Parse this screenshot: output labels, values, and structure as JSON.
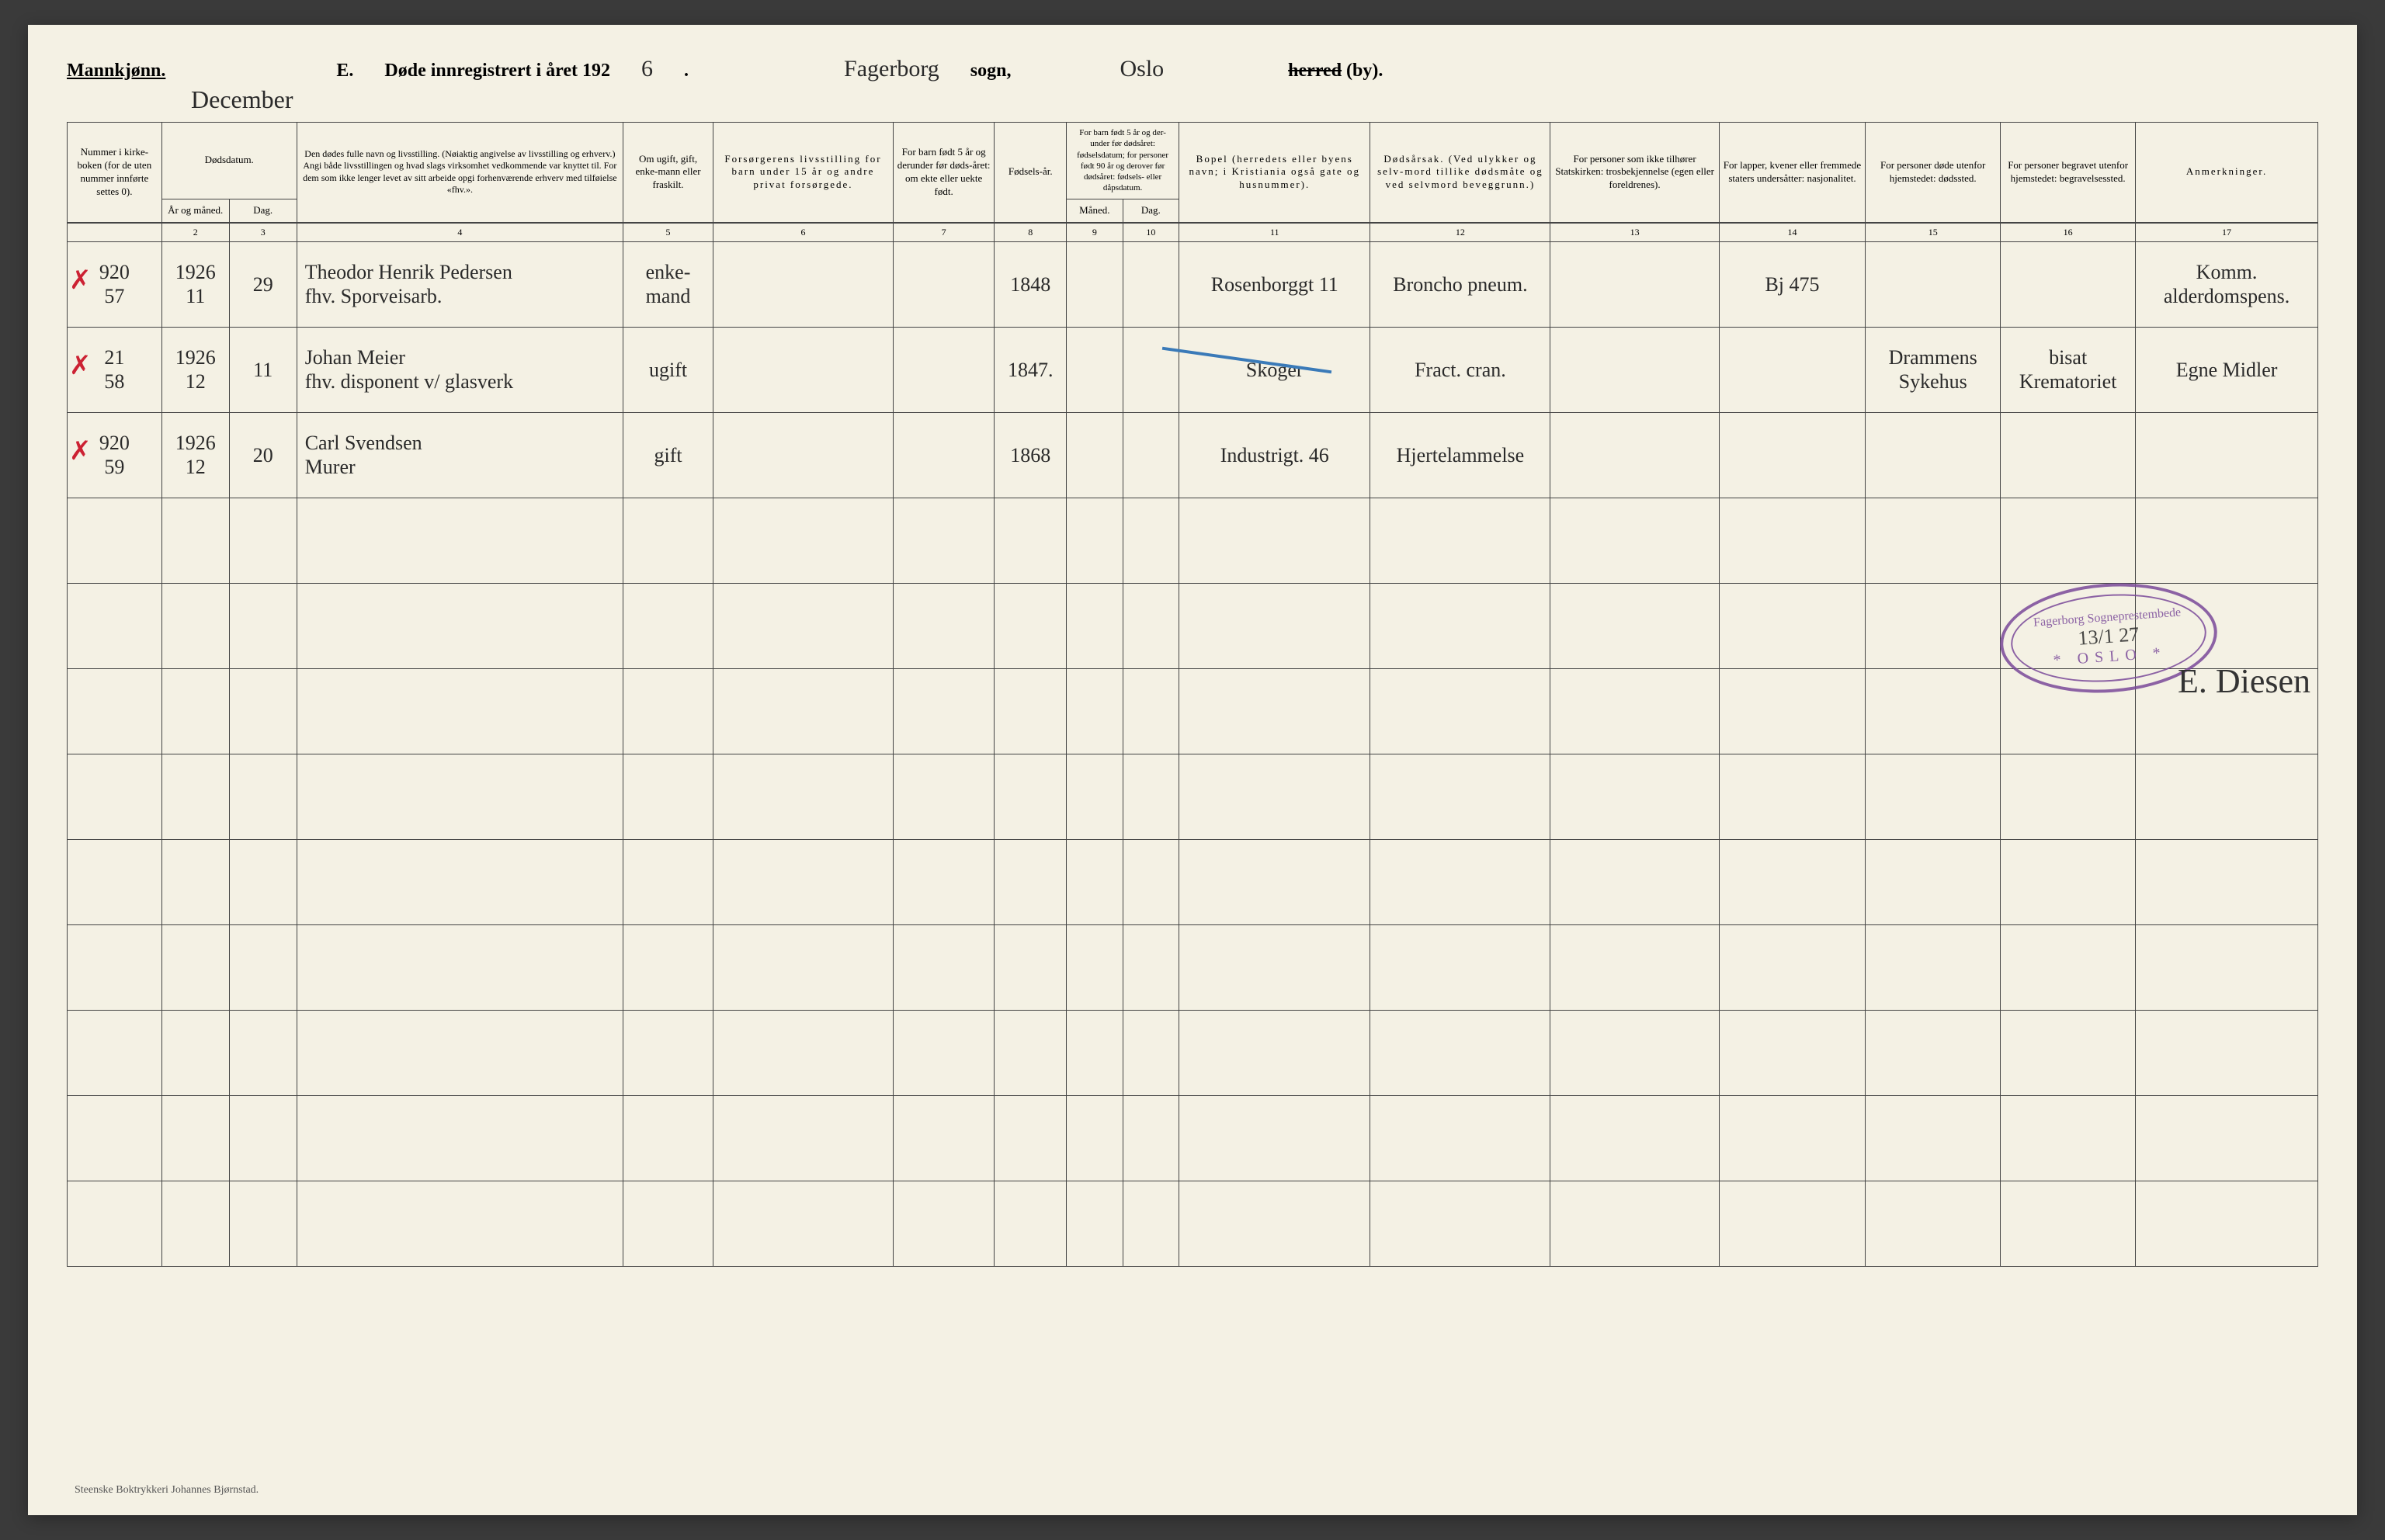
{
  "document": {
    "background_color": "#f4f1e4",
    "border_color": "#444444",
    "text_color": "#2a2a2a",
    "stamp_color": "#7a4a9a",
    "red_mark_color": "#cc2233",
    "blue_mark_color": "#3a7ab8"
  },
  "header": {
    "gender_label": "Mannkjønn.",
    "title_prefix": "E.",
    "title": "Døde innregistrert i året 192",
    "year_suffix": "6",
    "month_handwritten": "December",
    "parish_handwritten": "Fagerborg",
    "parish_label": "sogn,",
    "city_handwritten": "Oslo",
    "district_label_strike": "herred",
    "district_label_suffix": " (by)."
  },
  "columns": {
    "widths_pct": [
      4.2,
      3.0,
      3.0,
      14.5,
      4.0,
      8.0,
      4.5,
      3.2,
      2.5,
      2.5,
      8.5,
      8.0,
      7.5,
      6.5,
      6.0,
      6.0,
      8.1
    ],
    "headers": {
      "c1": "Nummer i kirke-boken (for de uten nummer innførte settes 0).",
      "c2_top": "Dødsdatum.",
      "c2a": "År og måned.",
      "c2b": "Dag.",
      "c3": "Den dødes fulle navn og livsstilling. (Nøiaktig angivelse av livsstilling og erhverv.) Angi både livsstillingen og hvad slags virksomhet vedkommende var knyttet til. For dem som ikke lenger levet av sitt arbeide opgi forhenværende erhverv med tilføielse «fhv.».",
      "c4": "Om ugift, gift, enke-mann eller fraskilt.",
      "c5": "Forsørgerens livsstilling for barn under 15 år og andre privat forsørgede.",
      "c6": "For barn født 5 år og derunder før døds-året: om ekte eller uekte født.",
      "c7": "Fødsels-år.",
      "c8_top": "For barn født 5 år og der-under før dødsåret: fødselsdatum; for personer født 90 år og derover før dødsåret: fødsels- eller dåpsdatum.",
      "c8a": "Måned.",
      "c8b": "Dag.",
      "c9": "Bopel (herredets eller byens navn; i Kristiania også gate og husnummer).",
      "c10": "Dødsårsak. (Ved ulykker og selv-mord tillike dødsmåte og ved selvmord beveggrunn.)",
      "c11": "For personer som ikke tilhører Statskirken: trosbekjennelse (egen eller foreldrenes).",
      "c12": "For lapper, kvener eller fremmede staters undersåtter: nasjonalitet.",
      "c13": "For personer døde utenfor hjemstedet: dødssted.",
      "c14": "For personer begravet utenfor hjemstedet: begravelsessted.",
      "c15": "Anmerkninger."
    },
    "numbers": [
      "",
      "2",
      "3",
      "4",
      "5",
      "6",
      "7",
      "8",
      "9",
      "10",
      "11",
      "12",
      "13",
      "14",
      "15",
      "16",
      "17"
    ]
  },
  "rows": [
    {
      "margin": "920\n57",
      "year_month": "1926\n11",
      "day": "29",
      "name": "Theodor Henrik Pedersen\nfhv. Sporveisarb.",
      "status": "enke-mand",
      "provider": "",
      "legitimacy": "",
      "birth_year": "1848",
      "birth_m": "",
      "birth_d": "",
      "residence": "Rosenborggt 11",
      "cause": "Broncho pneum.",
      "creed": "",
      "nationality": "Bj 475",
      "death_place": "",
      "burial_place": "",
      "remarks": "Komm. alderdomspens."
    },
    {
      "margin": "21\n58",
      "year_month": "1926\n12",
      "day": "11",
      "name": "Johan Meier\nfhv. disponent v/ glasverk",
      "status": "ugift",
      "provider": "",
      "legitimacy": "",
      "birth_year": "1847.",
      "birth_m": "",
      "birth_d": "",
      "residence": "Skoger",
      "cause": "Fract. cran.",
      "creed": "",
      "nationality": "",
      "death_place": "Drammens Sykehus",
      "burial_place": "bisat Krematoriet",
      "remarks": "Egne Midler"
    },
    {
      "margin": "920\n59",
      "year_month": "1926\n12",
      "day": "20",
      "name": "Carl Svendsen\nMurer",
      "status": "gift",
      "provider": "",
      "legitimacy": "",
      "birth_year": "1868",
      "birth_m": "",
      "birth_d": "",
      "residence": "Industrigt. 46",
      "cause": "Hjertelammelse",
      "creed": "",
      "nationality": "",
      "death_place": "",
      "burial_place": "",
      "remarks": ""
    }
  ],
  "empty_row_count": 9,
  "stamp": {
    "top": "Fagerborg Sogneprestembede",
    "date": "13/1 27",
    "city": "OSLO"
  },
  "signature": "E. Diesen",
  "footer": "Steenske Boktrykkeri Johannes Bjørnstad."
}
